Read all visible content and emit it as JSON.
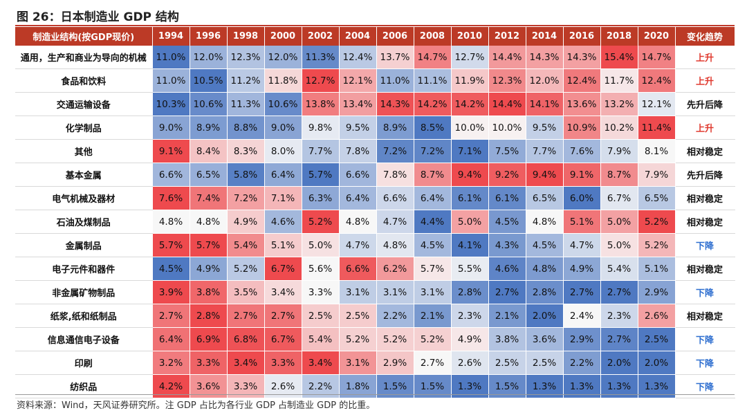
{
  "title": "图 26：日本制造业 GDP 结构",
  "footer": "资料来源：Wind，天风证券研究所。注 GDP 占比为各行业 GDP 占制造业 GDP 的比重。",
  "colors": {
    "header_bg": "#bc3a26",
    "up": "#e03a2f",
    "down": "#2f6fd0",
    "neutral": "#111111",
    "high": "#ee4a4e",
    "mid": "#f7f7f7",
    "low": "#4f79c2"
  },
  "chart_data": {
    "type": "heatmap",
    "title": "图 26：日本制造业 GDP 结构",
    "row_header": "制造业结构(按GDP现价)",
    "trend_header": "变化趋势",
    "years": [
      "1994",
      "1996",
      "1998",
      "2000",
      "2002",
      "2004",
      "2006",
      "2008",
      "2010",
      "2012",
      "2014",
      "2016",
      "2018",
      "2020"
    ],
    "rows": [
      {
        "name": "通用，生产和商业为导向的机械",
        "values": [
          11.0,
          12.0,
          12.3,
          12.0,
          11.3,
          12.4,
          13.7,
          14.7,
          12.7,
          14.4,
          14.3,
          14.3,
          15.4,
          14.7
        ],
        "trend": "上升",
        "trend_type": "up"
      },
      {
        "name": "食品和饮料",
        "values": [
          11.0,
          10.5,
          11.2,
          11.8,
          12.7,
          12.1,
          11.0,
          11.1,
          11.9,
          12.3,
          12.0,
          12.4,
          11.7,
          12.4
        ],
        "trend": "上升",
        "trend_type": "up"
      },
      {
        "name": "交通运输设备",
        "values": [
          10.3,
          10.6,
          11.3,
          10.6,
          13.8,
          13.4,
          14.3,
          14.2,
          14.2,
          14.4,
          14.1,
          13.6,
          13.2,
          12.1
        ],
        "trend": "先升后降",
        "trend_type": "neutral"
      },
      {
        "name": "化学制品",
        "values": [
          9.0,
          8.9,
          8.8,
          9.0,
          9.8,
          9.5,
          8.9,
          8.5,
          10.0,
          10.0,
          9.5,
          10.9,
          10.2,
          11.4
        ],
        "trend": "上升",
        "trend_type": "up"
      },
      {
        "name": "其他",
        "values": [
          9.1,
          8.4,
          8.3,
          8.0,
          7.7,
          7.8,
          7.2,
          7.2,
          7.1,
          7.5,
          7.7,
          7.6,
          7.9,
          8.1
        ],
        "trend": "相对稳定",
        "trend_type": "neutral"
      },
      {
        "name": "基本金属",
        "values": [
          6.6,
          6.5,
          5.8,
          6.4,
          5.7,
          6.6,
          7.8,
          8.7,
          9.4,
          9.2,
          9.4,
          9.1,
          8.7,
          7.9
        ],
        "trend": "先升后降",
        "trend_type": "neutral"
      },
      {
        "name": "电气机械及器材",
        "values": [
          7.6,
          7.4,
          7.2,
          7.1,
          6.3,
          6.4,
          6.6,
          6.4,
          6.1,
          6.1,
          6.5,
          6.0,
          6.7,
          6.5
        ],
        "trend": "相对稳定",
        "trend_type": "neutral"
      },
      {
        "name": "石油及煤制品",
        "values": [
          4.8,
          4.8,
          4.9,
          4.6,
          5.2,
          4.8,
          4.7,
          4.4,
          5.0,
          4.5,
          4.8,
          5.1,
          5.0,
          5.2
        ],
        "trend": "相对稳定",
        "trend_type": "neutral"
      },
      {
        "name": "金属制品",
        "values": [
          5.7,
          5.7,
          5.4,
          5.1,
          5.0,
          4.7,
          4.8,
          4.5,
          4.1,
          4.3,
          4.5,
          4.7,
          5.0,
          5.2
        ],
        "trend": "下降",
        "trend_type": "down"
      },
      {
        "name": "电子元件和器件",
        "values": [
          4.5,
          4.9,
          5.2,
          6.7,
          5.6,
          6.6,
          6.2,
          5.7,
          5.5,
          4.6,
          4.8,
          4.9,
          5.4,
          5.1
        ],
        "trend": "相对稳定",
        "trend_type": "neutral"
      },
      {
        "name": "非金属矿物制品",
        "values": [
          3.9,
          3.8,
          3.5,
          3.4,
          3.3,
          3.1,
          3.1,
          3.1,
          2.8,
          2.7,
          2.8,
          2.7,
          2.7,
          2.9
        ],
        "trend": "下降",
        "trend_type": "down"
      },
      {
        "name": "纸浆,纸和纸制品",
        "values": [
          2.7,
          2.8,
          2.7,
          2.7,
          2.5,
          2.5,
          2.2,
          2.1,
          2.3,
          2.1,
          2.0,
          2.4,
          2.3,
          2.6
        ],
        "trend": "相对稳定",
        "trend_type": "neutral"
      },
      {
        "name": "信息通信电子设备",
        "values": [
          6.4,
          6.9,
          6.8,
          6.7,
          5.4,
          5.2,
          5.2,
          5.2,
          4.9,
          3.8,
          3.6,
          2.9,
          2.7,
          2.5
        ],
        "trend": "下降",
        "trend_type": "down"
      },
      {
        "name": "印刷",
        "values": [
          3.2,
          3.3,
          3.4,
          3.3,
          3.4,
          3.1,
          2.9,
          2.7,
          2.6,
          2.5,
          2.5,
          2.2,
          2.0,
          2.0
        ],
        "trend": "下降",
        "trend_type": "down"
      },
      {
        "name": "纺织品",
        "values": [
          4.2,
          3.6,
          3.3,
          2.6,
          2.2,
          1.8,
          1.5,
          1.5,
          1.3,
          1.5,
          1.3,
          1.3,
          1.3,
          1.3
        ],
        "trend": "下降",
        "trend_type": "down"
      }
    ]
  }
}
